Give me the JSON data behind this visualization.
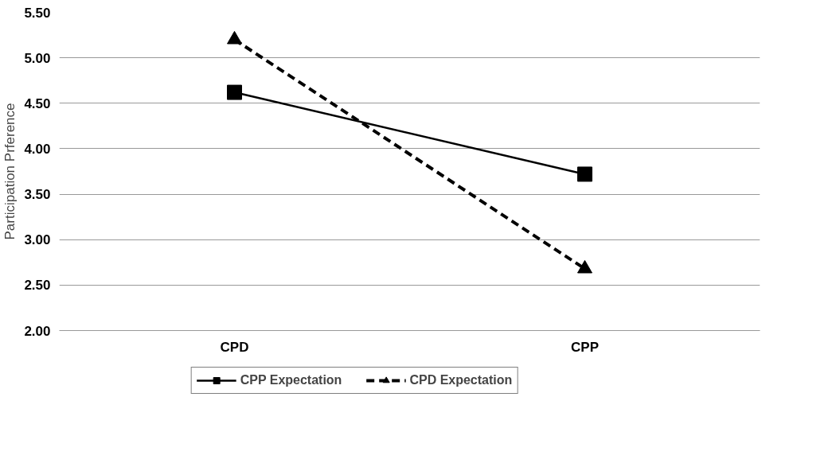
{
  "chart_data": {
    "type": "line",
    "ylabel": "Participation Prference",
    "categories": [
      "CPD",
      "CPP"
    ],
    "series": [
      {
        "name": "CPP Expectation",
        "color": "#000000",
        "values": [
          4.62,
          3.72
        ],
        "marker": "square",
        "line_style": "solid"
      },
      {
        "name": "CPD Expectation",
        "color": "#000000",
        "values": [
          5.2,
          2.68
        ],
        "marker": "triangle",
        "line_style": "dashed"
      }
    ],
    "ylim": [
      2.0,
      5.5
    ],
    "yticks": [
      {
        "value": 2,
        "label": "2.00"
      },
      {
        "value": 2.5,
        "label": "2.50"
      },
      {
        "value": 3,
        "label": "3.00"
      },
      {
        "value": 3.5,
        "label": "3.50"
      },
      {
        "value": 4,
        "label": "4.00"
      },
      {
        "value": 4.5,
        "label": "4.50"
      },
      {
        "value": 5,
        "label": "5.00"
      },
      {
        "value": 5.5,
        "label": "5.50"
      }
    ],
    "grid": "y",
    "legend": "bottom"
  }
}
